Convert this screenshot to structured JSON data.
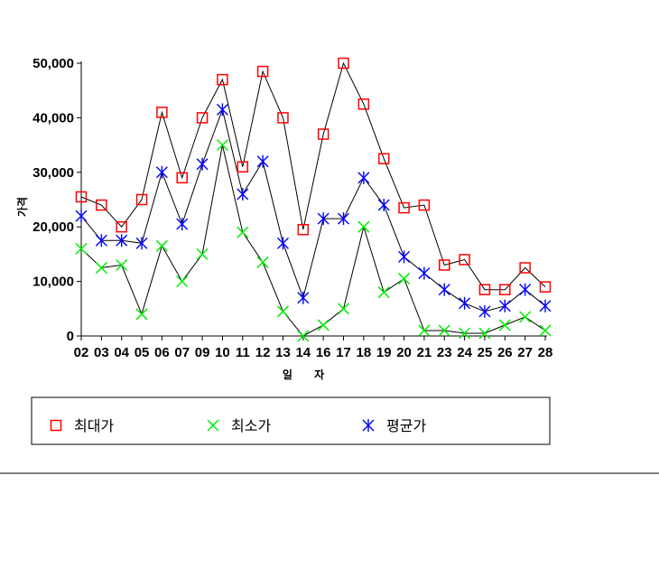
{
  "chart_data": {
    "type": "line",
    "xlabel": "일 자",
    "ylabel": "가격",
    "ylim": [
      0,
      50000
    ],
    "yticks": [
      0,
      10000,
      20000,
      30000,
      40000,
      50000
    ],
    "ytick_labels": [
      "0",
      "10,000",
      "20,000",
      "30,000",
      "40,000",
      "50,000"
    ],
    "categories": [
      "02",
      "03",
      "04",
      "05",
      "06",
      "07",
      "09",
      "10",
      "11",
      "12",
      "13",
      "14",
      "16",
      "17",
      "18",
      "19",
      "20",
      "21",
      "23",
      "24",
      "25",
      "26",
      "27",
      "28"
    ],
    "grid": false,
    "legend_position": "bottom",
    "series": [
      {
        "name": "최대가",
        "marker": "square",
        "color": "#ff0000",
        "values": [
          25500,
          24000,
          20000,
          25000,
          41000,
          29000,
          40000,
          47000,
          31000,
          48500,
          40000,
          19500,
          37000,
          50000,
          42500,
          32500,
          23500,
          24000,
          13000,
          14000,
          8500,
          8500,
          12500,
          9000
        ]
      },
      {
        "name": "최소가",
        "marker": "x",
        "color": "#00ee00",
        "values": [
          16000,
          12500,
          13000,
          4000,
          16500,
          10000,
          15000,
          35000,
          19000,
          13500,
          4500,
          0,
          2000,
          5000,
          20000,
          8000,
          10500,
          1000,
          1000,
          500,
          500,
          2000,
          3500,
          1000
        ]
      },
      {
        "name": "평균가",
        "marker": "asterisk",
        "color": "#0000ff",
        "values": [
          22000,
          17500,
          17500,
          17000,
          30000,
          20500,
          31500,
          41500,
          26000,
          32000,
          17000,
          7000,
          21500,
          21500,
          29000,
          24000,
          14500,
          11500,
          8500,
          6000,
          4500,
          5500,
          8500,
          5500
        ]
      }
    ]
  }
}
